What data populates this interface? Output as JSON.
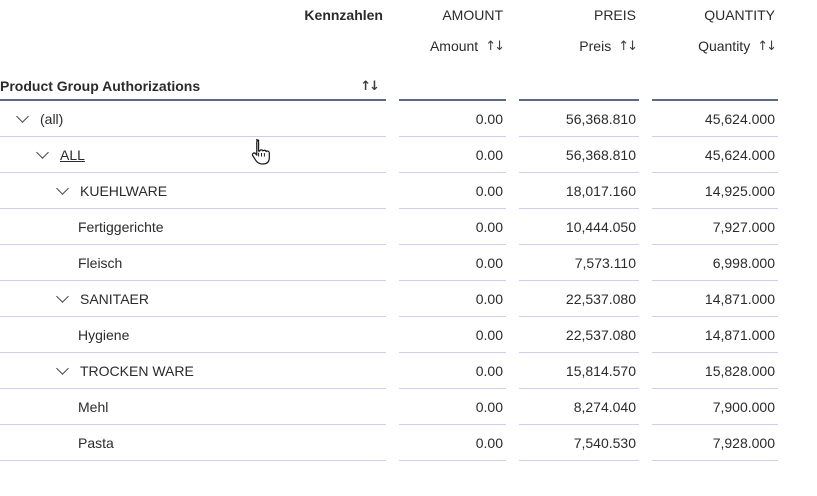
{
  "table": {
    "measures_group_label": "Kennzahlen",
    "row_dimension_label": "Product Group Authorizations",
    "sort_icon": "↑↓",
    "columns": [
      {
        "id": "amount",
        "header": "AMOUNT",
        "subheader": "Amount"
      },
      {
        "id": "preis",
        "header": "PREIS",
        "subheader": "Preis"
      },
      {
        "id": "quantity",
        "header": "QUANTITY",
        "subheader": "Quantity"
      }
    ],
    "rows": [
      {
        "label": "(all)",
        "level": 0,
        "expandable": true,
        "link": false,
        "amount": "0.00",
        "preis": "56,368.810",
        "quantity": "45,624.000"
      },
      {
        "label": "ALL",
        "level": 1,
        "expandable": true,
        "link": true,
        "amount": "0.00",
        "preis": "56,368.810",
        "quantity": "45,624.000"
      },
      {
        "label": "KUEHLWARE",
        "level": 2,
        "expandable": true,
        "link": false,
        "amount": "0.00",
        "preis": "18,017.160",
        "quantity": "14,925.000"
      },
      {
        "label": "Fertiggerichte",
        "level": 3,
        "expandable": false,
        "link": false,
        "amount": "0.00",
        "preis": "10,444.050",
        "quantity": "7,927.000"
      },
      {
        "label": "Fleisch",
        "level": 3,
        "expandable": false,
        "link": false,
        "amount": "0.00",
        "preis": "7,573.110",
        "quantity": "6,998.000"
      },
      {
        "label": "SANITAER",
        "level": 2,
        "expandable": true,
        "link": false,
        "amount": "0.00",
        "preis": "22,537.080",
        "quantity": "14,871.000"
      },
      {
        "label": "Hygiene",
        "level": 3,
        "expandable": false,
        "link": false,
        "amount": "0.00",
        "preis": "22,537.080",
        "quantity": "14,871.000"
      },
      {
        "label": "TROCKEN WARE",
        "level": 2,
        "expandable": true,
        "link": false,
        "amount": "0.00",
        "preis": "15,814.570",
        "quantity": "15,828.000"
      },
      {
        "label": "Mehl",
        "level": 3,
        "expandable": false,
        "link": false,
        "amount": "0.00",
        "preis": "8,274.040",
        "quantity": "7,900.000"
      },
      {
        "label": "Pasta",
        "level": 3,
        "expandable": false,
        "link": false,
        "amount": "0.00",
        "preis": "7,540.530",
        "quantity": "7,928.000"
      }
    ]
  },
  "colors": {
    "header_underline": "#5d6a85",
    "row_separator": "#cbd0ee",
    "text": "#2b2b2b"
  }
}
